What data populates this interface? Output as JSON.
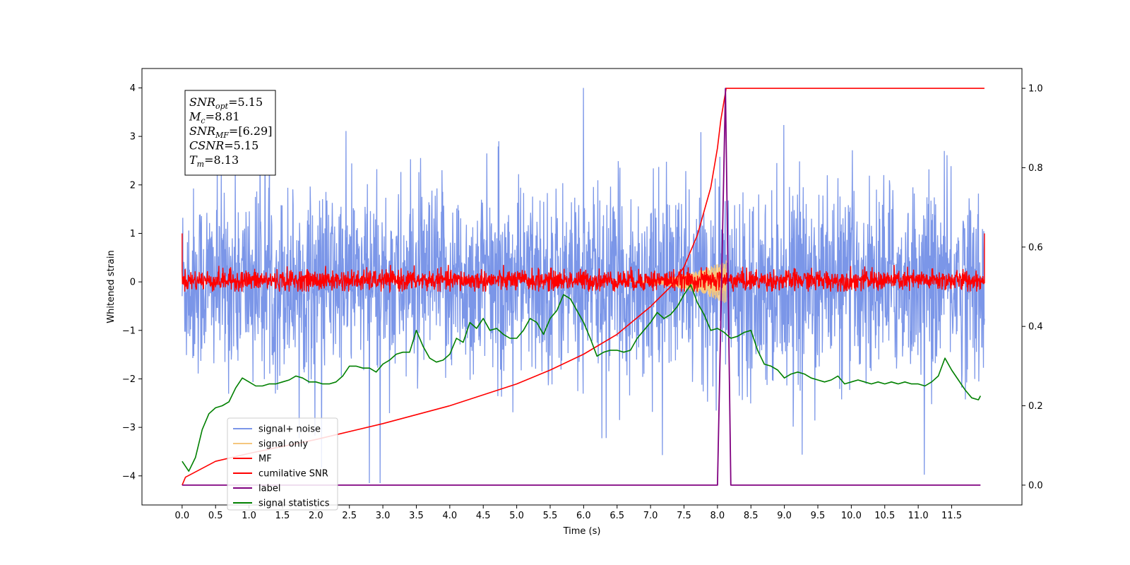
{
  "chart_data": {
    "type": "line",
    "title": "",
    "xlabel": "Time (s)",
    "ylabel": "Whitened strain",
    "y2label": "",
    "xlim": [
      -0.6,
      12.55
    ],
    "ylim": [
      -4.6,
      4.4
    ],
    "y2lim": [
      -0.05,
      1.05
    ],
    "xticks": [
      0,
      0.5,
      1,
      1.5,
      2,
      2.5,
      3,
      3.5,
      4,
      4.5,
      5,
      5.5,
      6,
      6.5,
      7,
      7.5,
      8,
      8.5,
      9,
      9.5,
      10,
      10.5,
      11,
      11.5
    ],
    "xtick_labels": [
      "0.0",
      "0.5",
      "1.0",
      "1.5",
      "2.0",
      "2.5",
      "3.0",
      "3.5",
      "4.0",
      "4.5",
      "5.0",
      "5.5",
      "6.0",
      "6.5",
      "7.0",
      "7.5",
      "8.0",
      "8.5",
      "9.0",
      "9.5",
      "10.0",
      "10.5",
      "11.0",
      "11.5"
    ],
    "yticks": [
      4,
      3,
      2,
      1,
      0,
      -1,
      -2,
      -3,
      -4
    ],
    "ytick_labels": [
      "4",
      "3",
      "2",
      "1",
      "0",
      "−1",
      "−2",
      "−3",
      "−4"
    ],
    "y2ticks": [
      1.0,
      0.8,
      0.6,
      0.4,
      0.2,
      0.0
    ],
    "y2tick_labels": [
      "1.0",
      "0.8",
      "0.6",
      "0.4",
      "0.2",
      "0.0"
    ],
    "grid": false,
    "legend_position": "lower-left",
    "annotation_box": {
      "lines": [
        {
          "base": "SNR",
          "sub": "opt",
          "value": "=5.15"
        },
        {
          "base": "M",
          "sub": "c",
          "value": "=8.81"
        },
        {
          "base": "SNR",
          "sub": "MF",
          "value": "=[6.29]"
        },
        {
          "base": "CSNR",
          "sub": "",
          "value": "=5.15"
        },
        {
          "base": "T",
          "sub": "m",
          "value": "=8.13"
        }
      ]
    },
    "series": [
      {
        "name": "signal+ noise",
        "color": "#7b96e8",
        "axis": "left",
        "kind": "noise",
        "t_range": [
          0,
          11.99
        ],
        "band": [
          -1.6,
          1.6
        ],
        "peaks": [
          4.0,
          -4.15
        ]
      },
      {
        "name": "signal only",
        "color": "#f5c77e",
        "axis": "left",
        "kind": "chirp",
        "t_range": [
          6.5,
          8.13
        ],
        "peak": 0.45
      },
      {
        "name": "MF",
        "color": "#ff0000",
        "axis": "left",
        "kind": "noise",
        "t_range": [
          0,
          11.99
        ],
        "band": [
          -0.2,
          0.35
        ],
        "edges": [
          1.0,
          1.0
        ]
      },
      {
        "name": "cumilative SNR",
        "color": "#ff0000",
        "axis": "right",
        "x": [
          0,
          0.05,
          0.5,
          1.0,
          2.0,
          3.0,
          4.0,
          5.0,
          5.5,
          6.0,
          6.5,
          7.0,
          7.3,
          7.5,
          7.7,
          7.9,
          8.0,
          8.05,
          8.13,
          8.14,
          11.99
        ],
        "y": [
          0.0,
          0.02,
          0.06,
          0.08,
          0.115,
          0.155,
          0.2,
          0.255,
          0.29,
          0.33,
          0.38,
          0.45,
          0.5,
          0.55,
          0.63,
          0.75,
          0.85,
          0.92,
          1.0,
          1.0,
          1.0
        ]
      },
      {
        "name": "label",
        "color": "#800080",
        "axis": "right",
        "x": [
          0,
          8.0,
          8.12,
          8.2,
          11.93
        ],
        "y": [
          0,
          0,
          1.0,
          0,
          0
        ]
      },
      {
        "name": "signal statistics",
        "color": "#008000",
        "axis": "right",
        "x": [
          0,
          0.1,
          0.2,
          0.3,
          0.4,
          0.5,
          0.6,
          0.7,
          0.8,
          0.9,
          1.0,
          1.1,
          1.2,
          1.3,
          1.4,
          1.5,
          1.6,
          1.7,
          1.8,
          1.9,
          2.0,
          2.1,
          2.2,
          2.3,
          2.4,
          2.5,
          2.6,
          2.7,
          2.8,
          2.9,
          3.0,
          3.1,
          3.2,
          3.3,
          3.4,
          3.5,
          3.6,
          3.7,
          3.8,
          3.9,
          4.0,
          4.1,
          4.2,
          4.3,
          4.4,
          4.5,
          4.6,
          4.7,
          4.8,
          4.9,
          5.0,
          5.1,
          5.2,
          5.3,
          5.4,
          5.5,
          5.6,
          5.7,
          5.8,
          5.9,
          6.0,
          6.1,
          6.2,
          6.3,
          6.4,
          6.5,
          6.6,
          6.7,
          6.8,
          6.9,
          7.0,
          7.1,
          7.2,
          7.3,
          7.4,
          7.5,
          7.6,
          7.7,
          7.8,
          7.9,
          8.0,
          8.1,
          8.2,
          8.3,
          8.4,
          8.5,
          8.6,
          8.7,
          8.8,
          8.9,
          9.0,
          9.1,
          9.2,
          9.3,
          9.4,
          9.5,
          9.6,
          9.7,
          9.8,
          9.9,
          10.0,
          10.1,
          10.2,
          10.3,
          10.4,
          10.5,
          10.6,
          10.7,
          10.8,
          10.9,
          11.0,
          11.1,
          11.2,
          11.3,
          11.4,
          11.5,
          11.6,
          11.7,
          11.8,
          11.9,
          11.93
        ],
        "y": [
          0.06,
          0.035,
          0.07,
          0.14,
          0.18,
          0.195,
          0.2,
          0.21,
          0.245,
          0.27,
          0.26,
          0.25,
          0.25,
          0.255,
          0.255,
          0.26,
          0.265,
          0.275,
          0.27,
          0.26,
          0.26,
          0.255,
          0.255,
          0.26,
          0.275,
          0.3,
          0.3,
          0.295,
          0.295,
          0.285,
          0.305,
          0.315,
          0.33,
          0.335,
          0.335,
          0.39,
          0.35,
          0.32,
          0.31,
          0.315,
          0.33,
          0.37,
          0.36,
          0.41,
          0.395,
          0.42,
          0.39,
          0.395,
          0.38,
          0.37,
          0.37,
          0.39,
          0.42,
          0.41,
          0.38,
          0.42,
          0.44,
          0.48,
          0.47,
          0.44,
          0.41,
          0.37,
          0.325,
          0.335,
          0.34,
          0.34,
          0.335,
          0.34,
          0.37,
          0.39,
          0.41,
          0.435,
          0.42,
          0.43,
          0.45,
          0.48,
          0.505,
          0.46,
          0.43,
          0.39,
          0.395,
          0.385,
          0.37,
          0.375,
          0.385,
          0.39,
          0.34,
          0.305,
          0.3,
          0.29,
          0.27,
          0.28,
          0.285,
          0.28,
          0.27,
          0.265,
          0.26,
          0.265,
          0.275,
          0.255,
          0.26,
          0.265,
          0.26,
          0.255,
          0.26,
          0.255,
          0.26,
          0.255,
          0.26,
          0.255,
          0.255,
          0.25,
          0.26,
          0.275,
          0.32,
          0.29,
          0.265,
          0.24,
          0.22,
          0.215,
          0.225
        ]
      }
    ]
  }
}
